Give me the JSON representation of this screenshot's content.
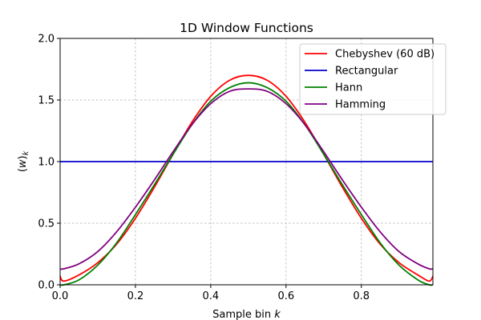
{
  "chart_data": {
    "type": "line",
    "title": "1D Window Functions",
    "xlabel": "Sample bin k",
    "ylabel": "(w)k",
    "xlim": [
      0.0,
      0.99
    ],
    "ylim": [
      0.0,
      2.0
    ],
    "xticks": [
      "0.0",
      "0.2",
      "0.4",
      "0.6",
      "0.8"
    ],
    "xtick_values": [
      0.0,
      0.2,
      0.4,
      0.6,
      0.8
    ],
    "yticks": [
      "0.0",
      "0.5",
      "1.0",
      "1.5",
      "2.0"
    ],
    "ytick_values": [
      0.0,
      0.5,
      1.0,
      1.5,
      2.0
    ],
    "grid": true,
    "legend_position": "top-right",
    "x": [
      0.0,
      0.01,
      0.05,
      0.1,
      0.15,
      0.2,
      0.25,
      0.3,
      0.35,
      0.4,
      0.45,
      0.5,
      0.55,
      0.6,
      0.65,
      0.7,
      0.75,
      0.8,
      0.85,
      0.9,
      0.95,
      0.98,
      0.99
    ],
    "series": [
      {
        "name": "Chebyshev (60 dB)",
        "color": "#ff0000",
        "values": [
          0.07,
          0.03,
          0.08,
          0.18,
          0.33,
          0.54,
          0.79,
          1.06,
          1.32,
          1.53,
          1.66,
          1.7,
          1.66,
          1.53,
          1.32,
          1.06,
          0.79,
          0.54,
          0.33,
          0.18,
          0.08,
          0.03,
          0.07
        ]
      },
      {
        "name": "Rectangular",
        "color": "#0000cd",
        "values": [
          1.0,
          1.0,
          1.0,
          1.0,
          1.0,
          1.0,
          1.0,
          1.0,
          1.0,
          1.0,
          1.0,
          1.0,
          1.0,
          1.0,
          1.0,
          1.0,
          1.0,
          1.0,
          1.0,
          1.0,
          1.0,
          1.0,
          1.0
        ]
      },
      {
        "name": "Hann",
        "color": "#008000",
        "values": [
          0.0,
          0.0,
          0.04,
          0.16,
          0.34,
          0.57,
          0.81,
          1.06,
          1.3,
          1.49,
          1.6,
          1.64,
          1.6,
          1.49,
          1.3,
          1.06,
          0.81,
          0.57,
          0.34,
          0.16,
          0.04,
          0.0,
          0.0
        ]
      },
      {
        "name": "Hamming",
        "color": "#800080",
        "values": [
          0.13,
          0.13,
          0.17,
          0.27,
          0.43,
          0.63,
          0.85,
          1.08,
          1.3,
          1.47,
          1.57,
          1.59,
          1.57,
          1.47,
          1.3,
          1.08,
          0.85,
          0.63,
          0.43,
          0.27,
          0.17,
          0.13,
          0.13
        ]
      }
    ]
  }
}
